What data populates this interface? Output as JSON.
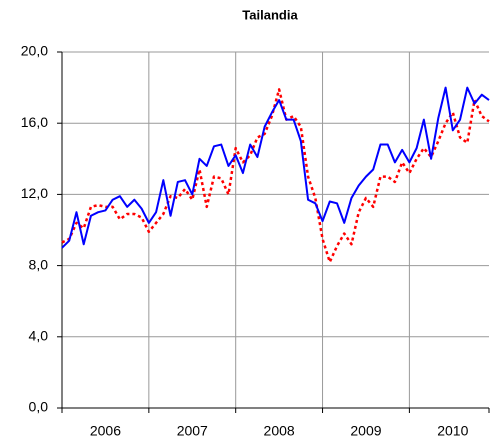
{
  "chart_data": {
    "type": "line",
    "title": "Tailandia",
    "categories": [
      null,
      null,
      null,
      null,
      null,
      null,
      "2006",
      null,
      null,
      null,
      null,
      null,
      null,
      null,
      null,
      null,
      null,
      null,
      "2007",
      null,
      null,
      null,
      null,
      null,
      null,
      null,
      null,
      null,
      null,
      null,
      "2008",
      null,
      null,
      null,
      null,
      null,
      null,
      null,
      null,
      null,
      null,
      null,
      "2009",
      null,
      null,
      null,
      null,
      null,
      null,
      null,
      null,
      null,
      null,
      null,
      "2010",
      null,
      null,
      null,
      null,
      null
    ],
    "series": [
      {
        "color": "#0000ff",
        "style": "solid",
        "values": [
          9.0,
          9.4,
          11.0,
          9.2,
          10.8,
          11.0,
          11.1,
          11.7,
          11.9,
          11.3,
          11.7,
          11.2,
          10.4,
          11.0,
          12.8,
          10.8,
          12.7,
          12.8,
          12.0,
          14.0,
          13.6,
          14.7,
          14.8,
          13.6,
          14.2,
          13.2,
          14.8,
          14.1,
          15.8,
          16.6,
          17.3,
          16.2,
          16.2,
          15.0,
          11.7,
          11.5,
          10.5,
          11.6,
          11.5,
          10.4,
          11.8,
          12.5,
          13.0,
          13.4,
          14.8,
          14.8,
          13.8,
          14.5,
          13.8,
          14.6,
          16.2,
          14.0,
          16.3,
          18.0,
          15.6,
          16.2,
          18.0,
          17.1,
          17.6,
          17.3
        ]
      },
      {
        "color": "#ff0000",
        "style": "dotted",
        "values": [
          9.3,
          9.5,
          10.4,
          10.1,
          11.3,
          11.4,
          11.3,
          11.3,
          10.6,
          10.9,
          10.9,
          10.7,
          9.9,
          10.4,
          10.9,
          11.9,
          11.8,
          12.3,
          11.7,
          13.4,
          11.3,
          13.0,
          12.9,
          12.0,
          14.6,
          13.8,
          14.2,
          15.2,
          15.4,
          16.4,
          17.9,
          16.2,
          16.4,
          15.8,
          13.0,
          11.8,
          9.5,
          8.2,
          9.1,
          9.8,
          9.2,
          11.0,
          11.8,
          11.3,
          13.0,
          13.0,
          12.7,
          13.8,
          13.2,
          14.0,
          14.6,
          14.1,
          15.0,
          16.0,
          16.6,
          15.2,
          14.9,
          17.3,
          16.4,
          16.1
        ]
      }
    ],
    "ylim": [
      0,
      20
    ],
    "yticks": [
      {
        "value": 0,
        "label": "0,0"
      },
      {
        "value": 4,
        "label": "4,0"
      },
      {
        "value": 8,
        "label": "8,0"
      },
      {
        "value": 12,
        "label": "12,0"
      },
      {
        "value": 16,
        "label": "16,0"
      },
      {
        "value": 20,
        "label": "20,0"
      }
    ],
    "grid": true
  }
}
